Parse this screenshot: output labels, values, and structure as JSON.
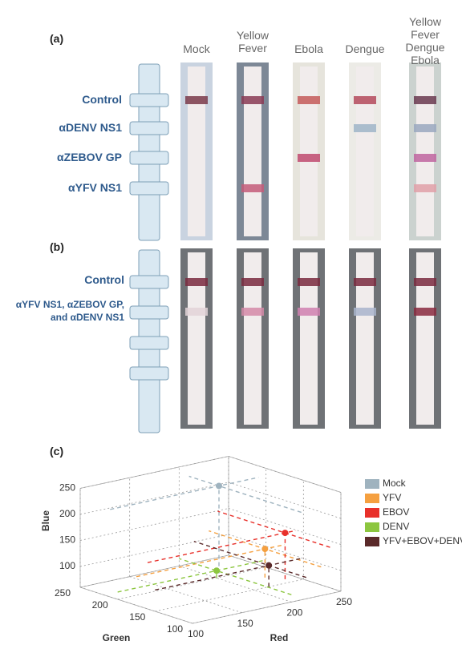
{
  "panel_a": {
    "label": "(a)",
    "columns": [
      "Mock",
      "Yellow\nFever",
      "Ebola",
      "Dengue",
      "Yellow Fever\nDengue\nEbola"
    ],
    "rows": [
      "Control",
      "αDENV NS1",
      "αZEBOV GP",
      "αYFV NS1"
    ]
  },
  "panel_b": {
    "label": "(b)",
    "rows": [
      "Control",
      "αYFV NS1, αZEBOV GP,\nand αDENV NS1"
    ]
  },
  "chart_data": {
    "type": "scatter3d",
    "label": "(c)",
    "x_label": "Red",
    "y_label": "Green",
    "z_label": "Blue",
    "xlim": [
      100,
      250
    ],
    "xticks": [
      100,
      150,
      200,
      250
    ],
    "ylim": [
      100,
      250
    ],
    "yticks": [
      100,
      150,
      200,
      250
    ],
    "zlim": [
      60,
      250
    ],
    "zticks": [
      100,
      150,
      200,
      250
    ],
    "series": [
      {
        "name": "Mock",
        "color": "#9fb3bf",
        "x": 210,
        "y": 210,
        "z": 228
      },
      {
        "name": "YFV",
        "color": "#f5a040",
        "x": 230,
        "y": 175,
        "z": 115
      },
      {
        "name": "EBOV",
        "color": "#e8302a",
        "x": 239,
        "y": 160,
        "z": 149
      },
      {
        "name": "DENV",
        "color": "#8cc63f",
        "x": 200,
        "y": 200,
        "z": 74
      },
      {
        "name": "YFV+EBOV+DENV",
        "color": "#5a2a2a",
        "x": 215,
        "y": 150,
        "z": 101
      }
    ]
  }
}
